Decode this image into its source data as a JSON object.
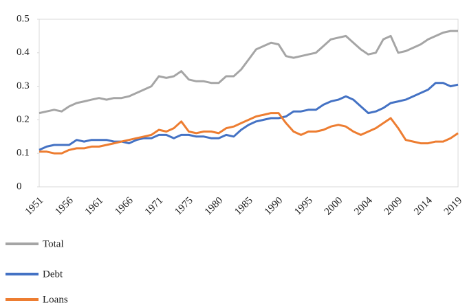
{
  "chart_data": {
    "type": "line",
    "categories": [
      "1951",
      null,
      null,
      null,
      "1956",
      null,
      null,
      null,
      "1961",
      null,
      null,
      null,
      "1966",
      null,
      null,
      null,
      "1971",
      null,
      null,
      null,
      "1975",
      null,
      null,
      null,
      "1980",
      null,
      null,
      null,
      "1985",
      null,
      null,
      null,
      "1990",
      null,
      null,
      null,
      "1995",
      null,
      null,
      null,
      "2000",
      null,
      null,
      null,
      "2004",
      null,
      null,
      null,
      "2009",
      null,
      null,
      null,
      "2014",
      null,
      null,
      null,
      "2019"
    ],
    "series": [
      {
        "name": "Total",
        "color": "#a5a5a5",
        "values": [
          0.22,
          0.225,
          0.23,
          0.225,
          0.24,
          0.25,
          0.255,
          0.26,
          0.265,
          0.26,
          0.265,
          0.265,
          0.27,
          0.28,
          0.29,
          0.3,
          0.33,
          0.325,
          0.33,
          0.345,
          0.32,
          0.315,
          0.315,
          0.31,
          0.31,
          0.33,
          0.33,
          0.35,
          0.38,
          0.41,
          0.42,
          0.43,
          0.425,
          0.39,
          0.385,
          0.39,
          0.395,
          0.4,
          0.42,
          0.44,
          0.445,
          0.45,
          0.43,
          0.41,
          0.395,
          0.4,
          0.44,
          0.45,
          0.4,
          0.405,
          0.415,
          0.425,
          0.44,
          0.45,
          0.46,
          0.465,
          0.465
        ]
      },
      {
        "name": "Debt",
        "color": "#4472c4",
        "values": [
          0.11,
          0.12,
          0.125,
          0.125,
          0.125,
          0.14,
          0.135,
          0.14,
          0.14,
          0.14,
          0.135,
          0.135,
          0.13,
          0.14,
          0.145,
          0.145,
          0.155,
          0.155,
          0.145,
          0.155,
          0.155,
          0.15,
          0.15,
          0.145,
          0.145,
          0.155,
          0.15,
          0.17,
          0.185,
          0.195,
          0.2,
          0.205,
          0.205,
          0.21,
          0.225,
          0.225,
          0.23,
          0.23,
          0.245,
          0.255,
          0.26,
          0.27,
          0.26,
          0.24,
          0.22,
          0.225,
          0.235,
          0.25,
          0.255,
          0.26,
          0.27,
          0.28,
          0.29,
          0.31,
          0.31,
          0.3,
          0.305
        ]
      },
      {
        "name": "Loans",
        "color": "#ed7d31",
        "values": [
          0.105,
          0.105,
          0.1,
          0.1,
          0.11,
          0.115,
          0.115,
          0.12,
          0.12,
          0.125,
          0.13,
          0.135,
          0.14,
          0.145,
          0.15,
          0.155,
          0.17,
          0.165,
          0.175,
          0.195,
          0.165,
          0.16,
          0.165,
          0.165,
          0.16,
          0.175,
          0.18,
          0.19,
          0.2,
          0.21,
          0.215,
          0.22,
          0.22,
          0.19,
          0.165,
          0.155,
          0.165,
          0.165,
          0.17,
          0.18,
          0.185,
          0.18,
          0.165,
          0.155,
          0.165,
          0.175,
          0.19,
          0.205,
          0.175,
          0.14,
          0.135,
          0.13,
          0.13,
          0.135,
          0.135,
          0.145,
          0.16
        ]
      }
    ],
    "ylim": [
      0,
      0.5
    ],
    "yticks": [
      0,
      0.1,
      0.2,
      0.3,
      0.4,
      0.5
    ],
    "grid": false,
    "legend": "bottom-left"
  }
}
